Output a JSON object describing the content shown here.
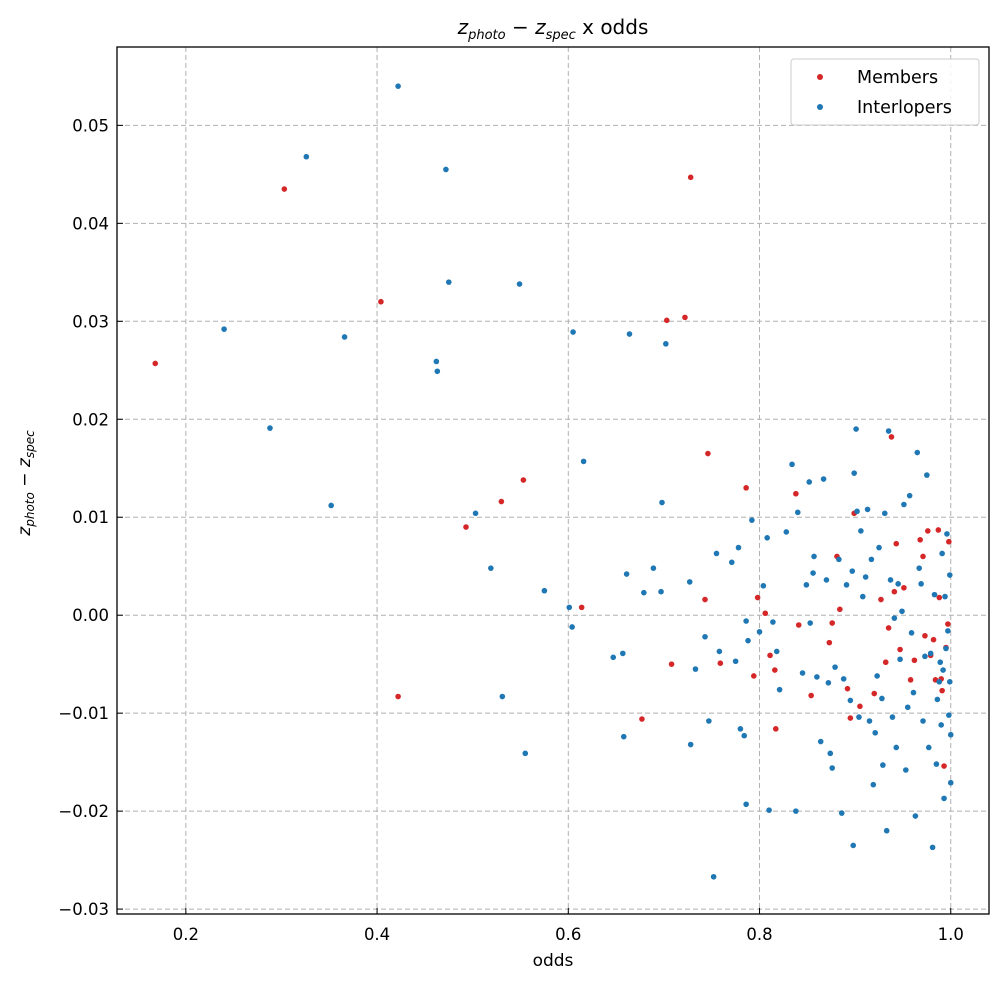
{
  "chart_data": {
    "type": "scatter",
    "title": {
      "prefix_var": "z",
      "prefix_sub": "photo",
      "minus": " − ",
      "second_var": "z",
      "second_sub": "spec",
      "suffix": " x odds"
    },
    "xlabel": "odds",
    "ylabel": {
      "prefix_var": "z",
      "prefix_sub": "photo",
      "minus": " − ",
      "second_var": "z",
      "second_sub": "spec"
    },
    "xlim": [
      0.128,
      1.04
    ],
    "ylim": [
      -0.0305,
      0.058
    ],
    "xticks": [
      0.2,
      0.4,
      0.6,
      0.8,
      1.0
    ],
    "xtick_labels": [
      "0.2",
      "0.4",
      "0.6",
      "0.8",
      "1.0"
    ],
    "yticks": [
      -0.03,
      -0.02,
      -0.01,
      0.0,
      0.01,
      0.02,
      0.03,
      0.04,
      0.05
    ],
    "ytick_labels": [
      "−0.03",
      "−0.02",
      "−0.01",
      "0.00",
      "0.01",
      "0.02",
      "0.03",
      "0.04",
      "0.05"
    ],
    "grid": true,
    "legend_position": "top-right",
    "series": [
      {
        "name": "Members",
        "color": "#d62728",
        "x": [
          0.168,
          0.303,
          0.404,
          0.422,
          0.493,
          0.53,
          0.553,
          0.614,
          0.677,
          0.703,
          0.708,
          0.722,
          0.728,
          0.743,
          0.746,
          0.759,
          0.786,
          0.794,
          0.798,
          0.806,
          0.811,
          0.816,
          0.817,
          0.838,
          0.841,
          0.854,
          0.873,
          0.876,
          0.881,
          0.884,
          0.892,
          0.895,
          0.899,
          0.905,
          0.92,
          0.927,
          0.932,
          0.935,
          0.938,
          0.941,
          0.943,
          0.947,
          0.951,
          0.958,
          0.962,
          0.968,
          0.971,
          0.973,
          0.976,
          0.979,
          0.982,
          0.984,
          0.987,
          0.988,
          0.99,
          0.991,
          0.993,
          0.995,
          0.997,
          0.998
        ],
        "y": [
          0.0257,
          0.0435,
          0.032,
          -0.0083,
          0.009,
          0.0116,
          0.0138,
          0.0008,
          -0.0106,
          0.0301,
          -0.005,
          0.0304,
          0.0447,
          0.0016,
          0.0165,
          -0.0049,
          0.013,
          -0.0062,
          0.0018,
          0.0002,
          -0.0041,
          -0.0056,
          -0.0116,
          0.0124,
          -0.001,
          -0.0082,
          -0.0028,
          -0.0008,
          0.006,
          0.0006,
          -0.0075,
          -0.0105,
          0.0104,
          -0.0093,
          -0.008,
          0.0016,
          -0.0048,
          -0.0013,
          0.0182,
          0.0024,
          0.0073,
          -0.0035,
          0.0028,
          -0.0066,
          -0.0046,
          0.0077,
          0.006,
          -0.0021,
          0.0086,
          -0.0041,
          -0.0025,
          -0.0066,
          0.0087,
          0.0018,
          -0.0065,
          -0.0077,
          -0.0154,
          -0.0033,
          -0.0009,
          0.0075
        ]
      },
      {
        "name": "Interlopers",
        "color": "#1f77b4",
        "x": [
          0.24,
          0.288,
          0.326,
          0.352,
          0.366,
          0.422,
          0.462,
          0.463,
          0.472,
          0.475,
          0.503,
          0.519,
          0.531,
          0.549,
          0.555,
          0.575,
          0.601,
          0.604,
          0.605,
          0.616,
          0.647,
          0.657,
          0.658,
          0.661,
          0.664,
          0.679,
          0.689,
          0.697,
          0.698,
          0.702,
          0.727,
          0.728,
          0.733,
          0.743,
          0.747,
          0.752,
          0.755,
          0.758,
          0.771,
          0.775,
          0.778,
          0.78,
          0.784,
          0.786,
          0.786,
          0.788,
          0.792,
          0.8,
          0.804,
          0.808,
          0.81,
          0.814,
          0.818,
          0.821,
          0.828,
          0.834,
          0.838,
          0.84,
          0.845,
          0.849,
          0.852,
          0.853,
          0.856,
          0.857,
          0.86,
          0.864,
          0.867,
          0.87,
          0.872,
          0.874,
          0.876,
          0.879,
          0.883,
          0.886,
          0.888,
          0.891,
          0.895,
          0.897,
          0.898,
          0.899,
          0.901,
          0.902,
          0.904,
          0.906,
          0.908,
          0.911,
          0.913,
          0.915,
          0.917,
          0.919,
          0.921,
          0.923,
          0.925,
          0.928,
          0.929,
          0.931,
          0.933,
          0.935,
          0.937,
          0.939,
          0.941,
          0.943,
          0.945,
          0.947,
          0.949,
          0.951,
          0.953,
          0.955,
          0.957,
          0.959,
          0.961,
          0.963,
          0.965,
          0.967,
          0.969,
          0.971,
          0.973,
          0.975,
          0.977,
          0.979,
          0.981,
          0.983,
          0.985,
          0.986,
          0.988,
          0.989,
          0.99,
          0.991,
          0.992,
          0.993,
          0.994,
          0.995,
          0.996,
          0.997,
          0.998,
          0.999,
          0.999,
          1.0,
          1.0
        ],
        "y": [
          0.0292,
          0.0191,
          0.0468,
          0.0112,
          0.0284,
          0.054,
          0.0259,
          0.0249,
          0.0455,
          0.034,
          0.0104,
          0.0048,
          -0.0083,
          0.0338,
          -0.0141,
          0.0025,
          0.0008,
          -0.0012,
          0.0289,
          0.0157,
          -0.0043,
          -0.0039,
          -0.0124,
          0.0042,
          0.0287,
          0.0023,
          0.0048,
          0.0024,
          0.0115,
          0.0277,
          0.0034,
          -0.0132,
          -0.0055,
          -0.0022,
          -0.0108,
          -0.0267,
          0.0063,
          -0.0037,
          0.0054,
          -0.0047,
          0.0069,
          -0.0116,
          -0.0123,
          -0.0006,
          -0.0193,
          -0.0026,
          0.0097,
          -0.0017,
          0.003,
          0.0079,
          -0.0199,
          -0.0007,
          -0.0037,
          -0.0076,
          0.0085,
          0.0154,
          -0.02,
          0.0105,
          -0.0059,
          0.0031,
          0.0136,
          -0.0008,
          0.0043,
          0.006,
          -0.0063,
          -0.0129,
          0.0139,
          0.0036,
          -0.0069,
          -0.0141,
          -0.0156,
          -0.0053,
          0.0057,
          -0.0202,
          -0.0065,
          0.0031,
          -0.0087,
          0.0045,
          -0.0235,
          0.0145,
          0.019,
          0.0106,
          -0.0104,
          0.0086,
          0.0019,
          0.0039,
          0.0108,
          -0.0108,
          0.0057,
          -0.0173,
          -0.012,
          -0.0062,
          0.0069,
          -0.0085,
          -0.0153,
          0.0104,
          -0.022,
          0.0188,
          0.0036,
          -0.0104,
          -0.0003,
          -0.0135,
          0.0032,
          -0.0045,
          0.0004,
          0.0113,
          -0.0158,
          -0.0094,
          0.0122,
          -0.0018,
          -0.0079,
          -0.0205,
          0.0166,
          0.0048,
          0.0032,
          -0.0108,
          -0.0042,
          0.0143,
          -0.0135,
          -0.0039,
          -0.0237,
          0.0021,
          -0.0152,
          -0.0086,
          -0.0068,
          -0.0048,
          -0.0112,
          0.0063,
          -0.0056,
          -0.0187,
          0.0019,
          -0.0034,
          0.0083,
          -0.0016,
          -0.0102,
          0.0041,
          -0.0068,
          -0.0122,
          -0.0171
        ]
      }
    ]
  }
}
